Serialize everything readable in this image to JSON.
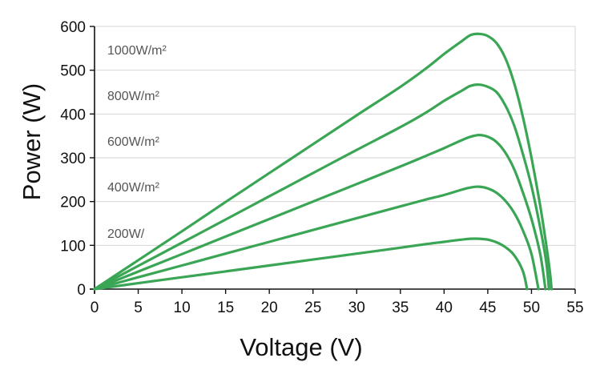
{
  "chart_data": {
    "type": "line",
    "title": "",
    "xlabel": "Voltage (V)",
    "ylabel": "Power (W)",
    "xlim": [
      0,
      55
    ],
    "ylim": [
      0,
      600
    ],
    "x_ticks": [
      0,
      5,
      10,
      15,
      20,
      25,
      30,
      35,
      40,
      45,
      50,
      55
    ],
    "y_ticks": [
      0,
      100,
      200,
      300,
      400,
      500,
      600
    ],
    "grid": "horizontal",
    "line_color": "#3aa655",
    "series": [
      {
        "name": "1000W/m²",
        "points": [
          [
            0,
            0
          ],
          [
            5,
            66
          ],
          [
            10,
            132
          ],
          [
            15,
            199
          ],
          [
            20,
            265
          ],
          [
            25,
            331
          ],
          [
            30,
            397
          ],
          [
            35,
            462
          ],
          [
            38,
            505
          ],
          [
            40,
            537
          ],
          [
            42,
            566
          ],
          [
            43,
            580
          ],
          [
            44,
            583
          ],
          [
            45,
            578
          ],
          [
            46,
            562
          ],
          [
            47,
            528
          ],
          [
            48,
            472
          ],
          [
            49,
            395
          ],
          [
            50,
            300
          ],
          [
            51,
            190
          ],
          [
            51.7,
            100
          ],
          [
            52.1,
            40
          ],
          [
            52.3,
            0
          ]
        ]
      },
      {
        "name": "800W/m²",
        "points": [
          [
            0,
            0
          ],
          [
            5,
            53
          ],
          [
            10,
            106
          ],
          [
            15,
            159
          ],
          [
            20,
            212
          ],
          [
            25,
            265
          ],
          [
            30,
            318
          ],
          [
            35,
            370
          ],
          [
            38,
            404
          ],
          [
            40,
            430
          ],
          [
            42,
            453
          ],
          [
            43,
            464
          ],
          [
            44,
            467
          ],
          [
            45,
            462
          ],
          [
            46,
            450
          ],
          [
            47,
            420
          ],
          [
            48,
            375
          ],
          [
            49,
            310
          ],
          [
            50,
            235
          ],
          [
            51,
            140
          ],
          [
            51.7,
            60
          ],
          [
            52,
            0
          ]
        ]
      },
      {
        "name": "600W/m²",
        "points": [
          [
            0,
            0
          ],
          [
            5,
            40
          ],
          [
            10,
            80
          ],
          [
            15,
            120
          ],
          [
            20,
            160
          ],
          [
            25,
            200
          ],
          [
            30,
            240
          ],
          [
            35,
            280
          ],
          [
            38,
            305
          ],
          [
            40,
            322
          ],
          [
            42,
            340
          ],
          [
            43,
            348
          ],
          [
            44,
            352
          ],
          [
            45,
            348
          ],
          [
            46,
            336
          ],
          [
            47,
            312
          ],
          [
            48,
            275
          ],
          [
            49,
            222
          ],
          [
            50,
            160
          ],
          [
            51,
            80
          ],
          [
            51.6,
            0
          ]
        ]
      },
      {
        "name": "400W/m²",
        "points": [
          [
            0,
            0
          ],
          [
            5,
            27
          ],
          [
            10,
            54
          ],
          [
            15,
            81
          ],
          [
            20,
            108
          ],
          [
            25,
            135
          ],
          [
            30,
            162
          ],
          [
            35,
            189
          ],
          [
            38,
            205
          ],
          [
            40,
            215
          ],
          [
            42,
            227
          ],
          [
            43,
            232
          ],
          [
            44,
            234
          ],
          [
            45,
            230
          ],
          [
            46,
            220
          ],
          [
            47,
            202
          ],
          [
            48,
            175
          ],
          [
            49,
            135
          ],
          [
            50,
            80
          ],
          [
            50.8,
            0
          ]
        ]
      },
      {
        "name": "200W/",
        "points": [
          [
            0,
            0
          ],
          [
            5,
            13.5
          ],
          [
            10,
            27
          ],
          [
            15,
            40.5
          ],
          [
            20,
            54
          ],
          [
            25,
            67.5
          ],
          [
            30,
            81
          ],
          [
            35,
            94.5
          ],
          [
            38,
            103
          ],
          [
            40,
            108
          ],
          [
            42,
            113
          ],
          [
            43,
            115
          ],
          [
            44,
            115
          ],
          [
            45,
            113
          ],
          [
            46,
            107
          ],
          [
            47,
            96
          ],
          [
            48,
            78
          ],
          [
            49,
            42
          ],
          [
            49.5,
            0
          ]
        ]
      }
    ]
  },
  "series_label_text": [
    "1000W/m²",
    "800W/m²",
    "600W/m²",
    "400W/m²",
    "200W/"
  ]
}
